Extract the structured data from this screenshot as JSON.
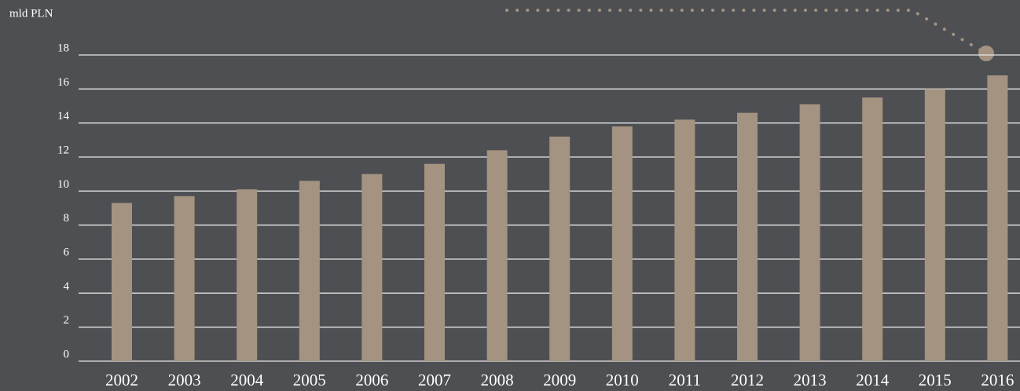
{
  "chart_data": {
    "type": "bar",
    "y_axis_label": "mld PLN",
    "categories": [
      "2002",
      "2003",
      "2004",
      "2005",
      "2006",
      "2007",
      "2008",
      "2009",
      "2010",
      "2011",
      "2012",
      "2013",
      "2014",
      "2015",
      "2016"
    ],
    "values": [
      9.3,
      9.7,
      10.1,
      10.6,
      11.0,
      11.6,
      12.4,
      13.2,
      13.8,
      14.2,
      14.6,
      15.1,
      15.5,
      16.0,
      16.8
    ],
    "color": "#a39380",
    "ylim": [
      0,
      18
    ],
    "yticks": [
      0,
      2,
      4,
      6,
      8,
      10,
      12,
      14,
      16,
      18
    ],
    "grid": true
  }
}
